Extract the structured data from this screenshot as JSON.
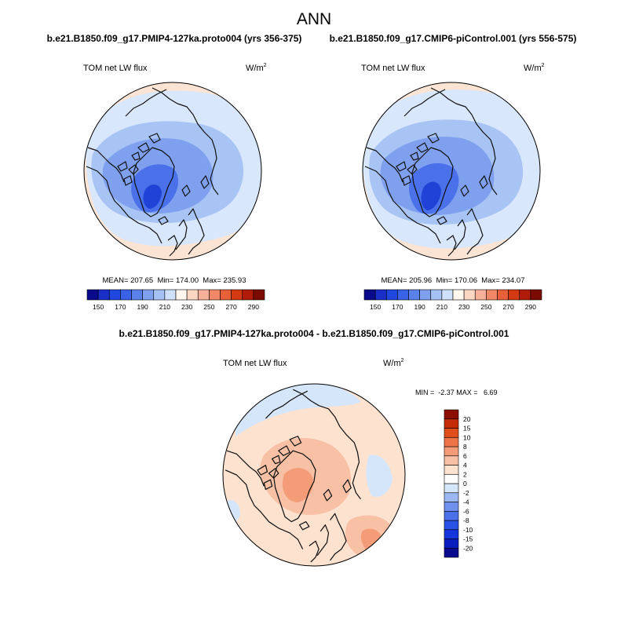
{
  "title": "ANN",
  "chart_data": [
    {
      "type": "heatmap",
      "projection": "north polar stereographic",
      "title": "b.e21.B1850.f09_g17.PMIP4-127ka.proto004 (yrs 356-375)",
      "variable_label": "TOM net LW flux",
      "units_base": "W/m",
      "units_exp": "2",
      "stats_text": "MEAN= 207.65  Min= 174.00  Max= 235.93",
      "stats": {
        "mean": 207.65,
        "min": 174.0,
        "max": 235.93
      },
      "colorbar": {
        "orientation": "horizontal",
        "levels": [
          150,
          160,
          170,
          180,
          190,
          200,
          210,
          220,
          230,
          240,
          250,
          260,
          270,
          280,
          290
        ],
        "tick_labels": [
          "150",
          "170",
          "190",
          "210",
          "230",
          "250",
          "270",
          "290"
        ],
        "colors": [
          "#0a0a8c",
          "#1a2ec8",
          "#2048e0",
          "#3a62e6",
          "#5a80ea",
          "#7fa0ef",
          "#a6c2f4",
          "#cfe1fa",
          "#fff6ee",
          "#fbd7c3",
          "#f6b09a",
          "#f08868",
          "#e8603a",
          "#d43a12",
          "#b01c08",
          "#7a0a02"
        ]
      }
    },
    {
      "type": "heatmap",
      "projection": "north polar stereographic",
      "title": "b.e21.B1850.f09_g17.CMIP6-piControl.001 (yrs 556-575)",
      "variable_label": "TOM net LW flux",
      "units_base": "W/m",
      "units_exp": "2",
      "stats_text": "MEAN= 205.96  Min= 170.06  Max= 234.07",
      "stats": {
        "mean": 205.96,
        "min": 170.06,
        "max": 234.07
      },
      "colorbar": {
        "orientation": "horizontal",
        "levels": [
          150,
          160,
          170,
          180,
          190,
          200,
          210,
          220,
          230,
          240,
          250,
          260,
          270,
          280,
          290
        ],
        "tick_labels": [
          "150",
          "170",
          "190",
          "210",
          "230",
          "250",
          "270",
          "290"
        ],
        "colors": [
          "#0a0a8c",
          "#1a2ec8",
          "#2048e0",
          "#3a62e6",
          "#5a80ea",
          "#7fa0ef",
          "#a6c2f4",
          "#cfe1fa",
          "#fff6ee",
          "#fbd7c3",
          "#f6b09a",
          "#f08868",
          "#e8603a",
          "#d43a12",
          "#b01c08",
          "#7a0a02"
        ]
      }
    },
    {
      "type": "heatmap",
      "projection": "north polar stereographic",
      "title": "b.e21.B1850.f09_g17.PMIP4-127ka.proto004 - b.e21.B1850.f09_g17.CMIP6-piControl.001",
      "variable_label": "TOM net LW flux",
      "units_base": "W/m",
      "units_exp": "2",
      "stats_text": "MIN =  -2.37 MAX =   6.69",
      "stats": {
        "min": -2.37,
        "max": 6.69
      },
      "colorbar": {
        "orientation": "vertical",
        "levels": [
          -20,
          -15,
          -10,
          -8,
          -6,
          -4,
          -2,
          0,
          2,
          4,
          6,
          8,
          10,
          15,
          20
        ],
        "tick_labels": [
          "-20",
          "-15",
          "-10",
          "-8",
          "-6",
          "-4",
          "-2",
          "0",
          "2",
          "4",
          "6",
          "8",
          "10",
          "15",
          "20"
        ],
        "colors": [
          "#0a0a8c",
          "#0a1ec0",
          "#1436dc",
          "#2a52e6",
          "#4a70ea",
          "#7090ee",
          "#9cb8f2",
          "#d6e6fa",
          "#ffffff",
          "#fde2d0",
          "#f8c0a4",
          "#f49c78",
          "#ee7448",
          "#e04e1c",
          "#c42c08",
          "#8c0e00"
        ]
      }
    }
  ]
}
